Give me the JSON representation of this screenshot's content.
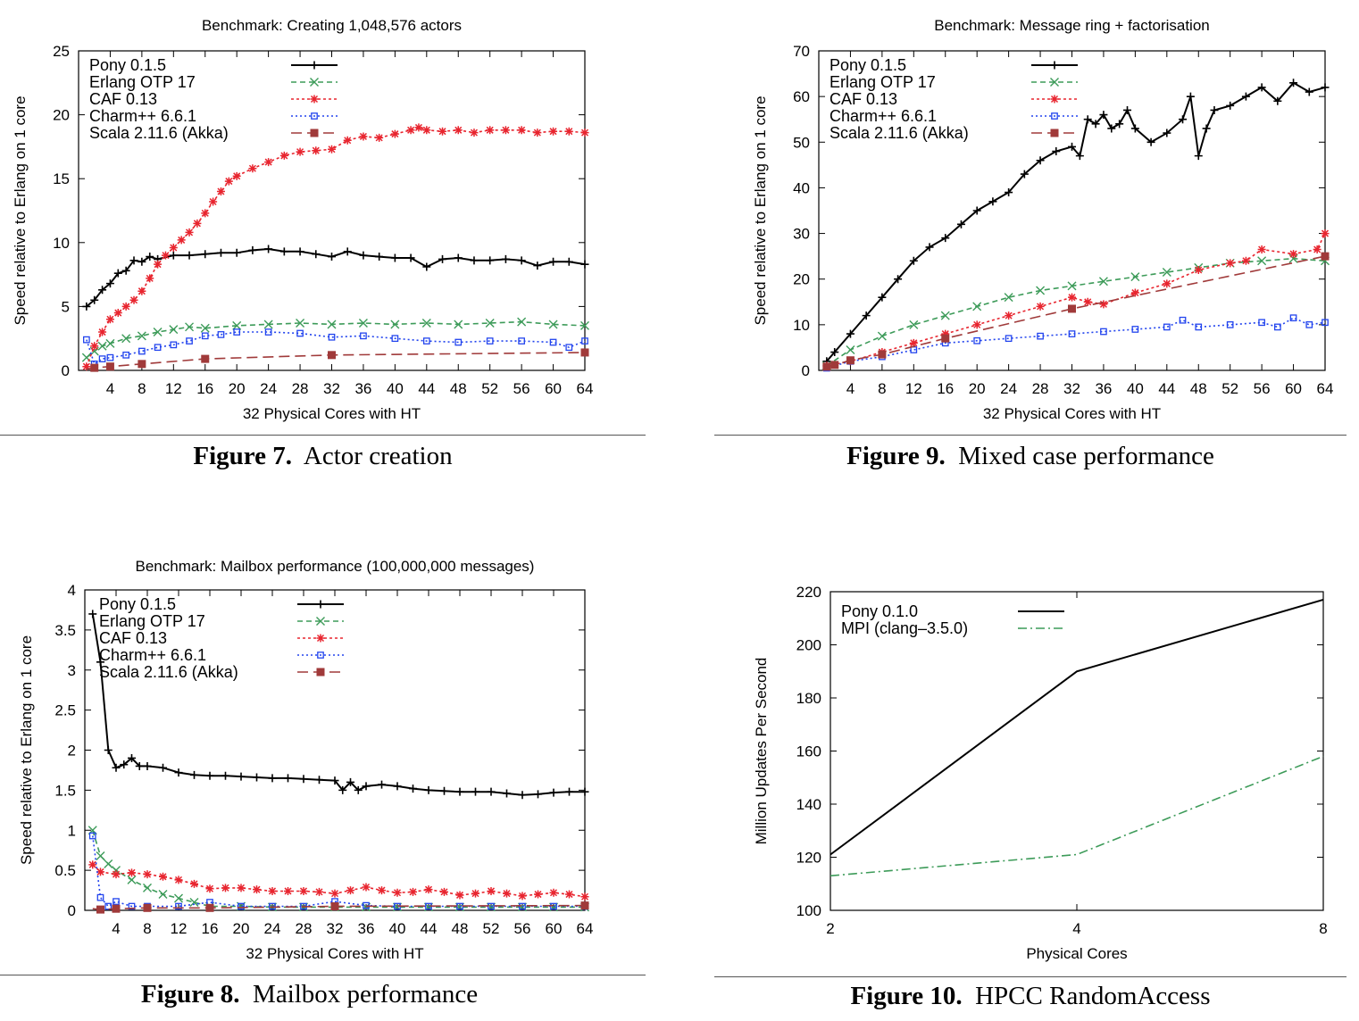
{
  "figures": [
    {
      "number": "Figure 7.",
      "title": "Actor creation"
    },
    {
      "number": "Figure 9.",
      "title": "Mixed case performance"
    },
    {
      "number": "Figure 8.",
      "title": "Mailbox performance"
    },
    {
      "number": "Figure 10.",
      "title": "HPCC RandomAccess"
    }
  ],
  "colors": {
    "pony": "#000000",
    "erlang": "#3d9b59",
    "caf": "#e8252f",
    "charm": "#2244ee",
    "scala": "#a03a3a",
    "mpi": "#3d9b59"
  },
  "chart_data": [
    {
      "type": "line",
      "title": "Benchmark: Creating 1,048,576 actors",
      "xlabel": "32 Physical Cores with HT",
      "ylabel": "Speed relative to Erlang on 1 core",
      "xlim": [
        0,
        64
      ],
      "ylim": [
        0,
        25
      ],
      "xticks": [
        4,
        8,
        12,
        16,
        20,
        24,
        28,
        32,
        36,
        40,
        44,
        48,
        52,
        56,
        60,
        64
      ],
      "yticks": [
        0,
        5,
        10,
        15,
        20,
        25
      ],
      "grid": false,
      "legend": "top-left",
      "series": [
        {
          "name": "Pony 0.1.5",
          "key": "pony",
          "marker": "plus",
          "dash": "",
          "x": [
            1,
            2,
            3,
            4,
            5,
            6,
            7,
            8,
            9,
            10,
            12,
            14,
            16,
            18,
            20,
            22,
            24,
            26,
            28,
            30,
            32,
            34,
            36,
            38,
            40,
            42,
            44,
            46,
            48,
            50,
            52,
            54,
            56,
            58,
            60,
            62,
            64
          ],
          "y": [
            5,
            5.5,
            6.3,
            6.8,
            7.6,
            7.8,
            8.6,
            8.5,
            8.9,
            8.7,
            9,
            9,
            9.1,
            9.2,
            9.2,
            9.4,
            9.5,
            9.3,
            9.3,
            9.1,
            8.9,
            9.3,
            9,
            8.9,
            8.8,
            8.8,
            8.1,
            8.7,
            8.8,
            8.6,
            8.6,
            8.7,
            8.6,
            8.2,
            8.5,
            8.5,
            8.3
          ]
        },
        {
          "name": "Erlang OTP 17",
          "key": "erlang",
          "marker": "x",
          "dash": "6,4",
          "x": [
            1,
            2,
            3,
            4,
            6,
            8,
            10,
            12,
            14,
            16,
            20,
            24,
            28,
            32,
            36,
            40,
            44,
            48,
            52,
            56,
            60,
            64
          ],
          "y": [
            1,
            1.5,
            1.9,
            2.1,
            2.5,
            2.7,
            3,
            3.2,
            3.4,
            3.3,
            3.5,
            3.6,
            3.7,
            3.6,
            3.7,
            3.6,
            3.7,
            3.6,
            3.7,
            3.8,
            3.6,
            3.5
          ]
        },
        {
          "name": "CAF 0.13",
          "key": "caf",
          "marker": "star",
          "dash": "3,3",
          "x": [
            1,
            2,
            3,
            4,
            5,
            6,
            7,
            8,
            9,
            10,
            11,
            12,
            13,
            14,
            15,
            16,
            17,
            18,
            19,
            20,
            22,
            24,
            26,
            28,
            30,
            32,
            34,
            36,
            38,
            40,
            42,
            43,
            44,
            46,
            48,
            50,
            52,
            54,
            56,
            58,
            60,
            62,
            64
          ],
          "y": [
            0.3,
            1.9,
            3,
            4,
            4.5,
            5,
            5.5,
            6.2,
            7.2,
            8.3,
            9,
            9.6,
            10.2,
            10.8,
            11.5,
            12.3,
            13.2,
            14,
            14.8,
            15.2,
            15.8,
            16.3,
            16.8,
            17.1,
            17.2,
            17.3,
            18,
            18.3,
            18.2,
            18.5,
            18.8,
            19,
            18.8,
            18.7,
            18.8,
            18.6,
            18.8,
            18.8,
            18.8,
            18.6,
            18.7,
            18.7,
            18.6
          ]
        },
        {
          "name": "Charm++ 6.6.1",
          "key": "charm",
          "marker": "square",
          "dash": "2,3",
          "x": [
            1,
            2,
            3,
            4,
            6,
            8,
            10,
            12,
            14,
            16,
            18,
            20,
            24,
            28,
            32,
            36,
            40,
            44,
            48,
            52,
            56,
            60,
            62,
            64
          ],
          "y": [
            2.4,
            0.5,
            0.9,
            1,
            1.2,
            1.5,
            1.8,
            2,
            2.3,
            2.7,
            2.8,
            3,
            3,
            2.9,
            2.6,
            2.7,
            2.5,
            2.3,
            2.2,
            2.3,
            2.3,
            2.2,
            1.8,
            2.3
          ]
        },
        {
          "name": "Scala 2.11.6 (Akka)",
          "key": "scala",
          "marker": "bsquare",
          "dash": "12,6",
          "x": [
            1,
            2,
            4,
            8,
            16,
            32,
            64
          ],
          "y": [
            0.1,
            0.2,
            0.3,
            0.5,
            0.9,
            1.2,
            1.4
          ],
          "marks": [
            2,
            4,
            8,
            16,
            32,
            64
          ]
        }
      ]
    },
    {
      "type": "line",
      "title": "Benchmark: Message ring + factorisation",
      "xlabel": "32 Physical Cores with HT",
      "ylabel": "Speed relative to Erlang on 1 core",
      "xlim": [
        0,
        64
      ],
      "ylim": [
        0,
        70
      ],
      "xticks": [
        4,
        8,
        12,
        16,
        20,
        24,
        28,
        32,
        36,
        40,
        44,
        48,
        52,
        56,
        60,
        64
      ],
      "yticks": [
        0,
        10,
        20,
        30,
        40,
        50,
        60,
        70
      ],
      "grid": false,
      "legend": "top-left",
      "series": [
        {
          "name": "Pony 0.1.5",
          "key": "pony",
          "marker": "plus",
          "dash": "",
          "x": [
            1,
            2,
            4,
            6,
            8,
            10,
            12,
            14,
            16,
            18,
            20,
            22,
            24,
            26,
            28,
            30,
            32,
            33,
            34,
            35,
            36,
            37,
            38,
            39,
            40,
            42,
            44,
            46,
            47,
            48,
            49,
            50,
            52,
            54,
            56,
            58,
            60,
            62,
            64
          ],
          "y": [
            2,
            4,
            8,
            12,
            16,
            20,
            24,
            27,
            29,
            32,
            35,
            37,
            39,
            43,
            46,
            48,
            49,
            47,
            55,
            54,
            56,
            53,
            54,
            57,
            53,
            50,
            52,
            55,
            60,
            47,
            53,
            57,
            58,
            60,
            62,
            59,
            63,
            61,
            62
          ]
        },
        {
          "name": "Erlang OTP 17",
          "key": "erlang",
          "marker": "x",
          "dash": "6,4",
          "x": [
            1,
            4,
            8,
            12,
            16,
            20,
            24,
            28,
            32,
            36,
            40,
            44,
            48,
            52,
            56,
            60,
            64
          ],
          "y": [
            1,
            4.5,
            7.5,
            10,
            12,
            14,
            16,
            17.5,
            18.5,
            19.5,
            20.5,
            21.5,
            22.5,
            23.5,
            24,
            24.5,
            24
          ]
        },
        {
          "name": "CAF 0.13",
          "key": "caf",
          "marker": "star",
          "dash": "3,3",
          "x": [
            1,
            4,
            8,
            12,
            16,
            20,
            24,
            28,
            32,
            34,
            36,
            40,
            44,
            48,
            52,
            54,
            56,
            60,
            63,
            64
          ],
          "y": [
            1,
            2,
            4,
            6,
            8,
            10,
            12,
            14,
            16,
            15,
            14.5,
            17,
            19,
            22,
            23.5,
            24,
            26.5,
            25.5,
            26.5,
            30
          ]
        },
        {
          "name": "Charm++ 6.6.1",
          "key": "charm",
          "marker": "square",
          "dash": "2,3",
          "x": [
            1,
            4,
            8,
            12,
            16,
            20,
            24,
            28,
            32,
            36,
            40,
            44,
            46,
            48,
            52,
            56,
            58,
            60,
            62,
            64
          ],
          "y": [
            0.5,
            2,
            3,
            4.5,
            6,
            6.5,
            7,
            7.5,
            8,
            8.5,
            9,
            9.5,
            11,
            9.5,
            10,
            10.5,
            9.5,
            11.5,
            10,
            10.5
          ]
        },
        {
          "name": "Scala 2.11.6 (Akka)",
          "key": "scala",
          "marker": "bsquare",
          "dash": "12,6",
          "x": [
            1,
            2,
            4,
            8,
            16,
            32,
            64
          ],
          "y": [
            0.8,
            1.2,
            2.2,
            3.5,
            7,
            13.5,
            25
          ],
          "marks": [
            1,
            2,
            4,
            8,
            16,
            32,
            64
          ]
        }
      ]
    },
    {
      "type": "line",
      "title": "Benchmark: Mailbox performance (100,000,000 messages)",
      "xlabel": "32 Physical Cores with HT",
      "ylabel": "Speed relative to Erlang on 1 core",
      "xlim": [
        0,
        64
      ],
      "ylim": [
        0,
        4
      ],
      "xticks": [
        4,
        8,
        12,
        16,
        20,
        24,
        28,
        32,
        36,
        40,
        44,
        48,
        52,
        56,
        60,
        64
      ],
      "yticks": [
        0,
        0.5,
        1,
        1.5,
        2,
        2.5,
        3,
        3.5,
        4
      ],
      "grid": false,
      "legend": "top-left",
      "series": [
        {
          "name": "Pony 0.1.5",
          "key": "pony",
          "marker": "plus",
          "dash": "",
          "x": [
            1,
            2,
            3,
            4,
            5,
            6,
            7,
            8,
            10,
            12,
            14,
            16,
            18,
            20,
            22,
            24,
            26,
            28,
            30,
            32,
            33,
            34,
            35,
            36,
            38,
            40,
            42,
            44,
            46,
            48,
            50,
            52,
            54,
            56,
            58,
            60,
            62,
            64
          ],
          "y": [
            3.7,
            3.1,
            2,
            1.78,
            1.82,
            1.9,
            1.8,
            1.8,
            1.78,
            1.72,
            1.69,
            1.68,
            1.68,
            1.67,
            1.66,
            1.65,
            1.65,
            1.64,
            1.63,
            1.62,
            1.5,
            1.6,
            1.5,
            1.55,
            1.57,
            1.55,
            1.52,
            1.5,
            1.49,
            1.48,
            1.48,
            1.48,
            1.46,
            1.44,
            1.45,
            1.47,
            1.48,
            1.48
          ]
        },
        {
          "name": "Erlang OTP 17",
          "key": "erlang",
          "marker": "x",
          "dash": "6,4",
          "x": [
            1,
            2,
            3,
            4,
            6,
            8,
            10,
            12,
            14,
            16,
            20,
            24,
            28,
            32,
            36,
            40,
            44,
            48,
            52,
            56,
            60,
            64
          ],
          "y": [
            1,
            0.68,
            0.58,
            0.5,
            0.38,
            0.28,
            0.2,
            0.15,
            0.1,
            0.05,
            0.05,
            0.04,
            0.04,
            0.04,
            0.04,
            0.04,
            0.04,
            0.04,
            0.04,
            0.04,
            0.04,
            0.04
          ]
        },
        {
          "name": "CAF 0.13",
          "key": "caf",
          "marker": "star",
          "dash": "3,3",
          "x": [
            1,
            2,
            4,
            6,
            8,
            10,
            12,
            14,
            16,
            18,
            20,
            22,
            24,
            26,
            28,
            30,
            32,
            34,
            36,
            38,
            40,
            42,
            44,
            46,
            48,
            50,
            52,
            54,
            56,
            58,
            60,
            62,
            64
          ],
          "y": [
            0.57,
            0.48,
            0.45,
            0.47,
            0.45,
            0.42,
            0.38,
            0.33,
            0.27,
            0.28,
            0.28,
            0.26,
            0.24,
            0.24,
            0.24,
            0.23,
            0.21,
            0.25,
            0.29,
            0.25,
            0.22,
            0.23,
            0.26,
            0.23,
            0.19,
            0.21,
            0.24,
            0.21,
            0.18,
            0.2,
            0.22,
            0.2,
            0.17
          ]
        },
        {
          "name": "Charm++ 6.6.1",
          "key": "charm",
          "marker": "square",
          "dash": "2,3",
          "x": [
            1,
            2,
            3,
            4,
            6,
            8,
            12,
            16,
            20,
            24,
            28,
            32,
            36,
            40,
            44,
            48,
            52,
            56,
            60,
            64
          ],
          "y": [
            0.93,
            0.16,
            0.05,
            0.11,
            0.05,
            0.05,
            0.05,
            0.1,
            0.05,
            0.05,
            0.05,
            0.11,
            0.06,
            0.05,
            0.05,
            0.05,
            0.05,
            0.05,
            0.05,
            0.05
          ]
        },
        {
          "name": "Scala 2.11.6 (Akka)",
          "key": "scala",
          "marker": "bsquare",
          "dash": "12,6",
          "x": [
            1,
            2,
            4,
            8,
            16,
            32,
            64
          ],
          "y": [
            0.02,
            0.01,
            0.02,
            0.03,
            0.03,
            0.05,
            0.06
          ],
          "marks": [
            2,
            4,
            8,
            16,
            32,
            64
          ]
        }
      ]
    },
    {
      "type": "line",
      "title": "",
      "xlabel": "Physical Cores",
      "ylabel": "Million Updates Per Second",
      "xlim": [
        2,
        8
      ],
      "ylim": [
        100,
        220
      ],
      "xscale": "log2",
      "xticks": [
        2,
        4,
        8
      ],
      "yticks": [
        100,
        120,
        140,
        160,
        180,
        200,
        220
      ],
      "grid": false,
      "legend": "top-left",
      "series": [
        {
          "name": "Pony 0.1.0",
          "key": "pony",
          "marker": "none",
          "dash": "",
          "x": [
            2,
            4,
            8
          ],
          "y": [
            121,
            190,
            217
          ]
        },
        {
          "name": "MPI (clang–3.5.0)",
          "key": "mpi",
          "marker": "none",
          "dash": "10,4,2,4",
          "x": [
            2,
            4,
            8
          ],
          "y": [
            113,
            121,
            158
          ]
        }
      ]
    }
  ]
}
